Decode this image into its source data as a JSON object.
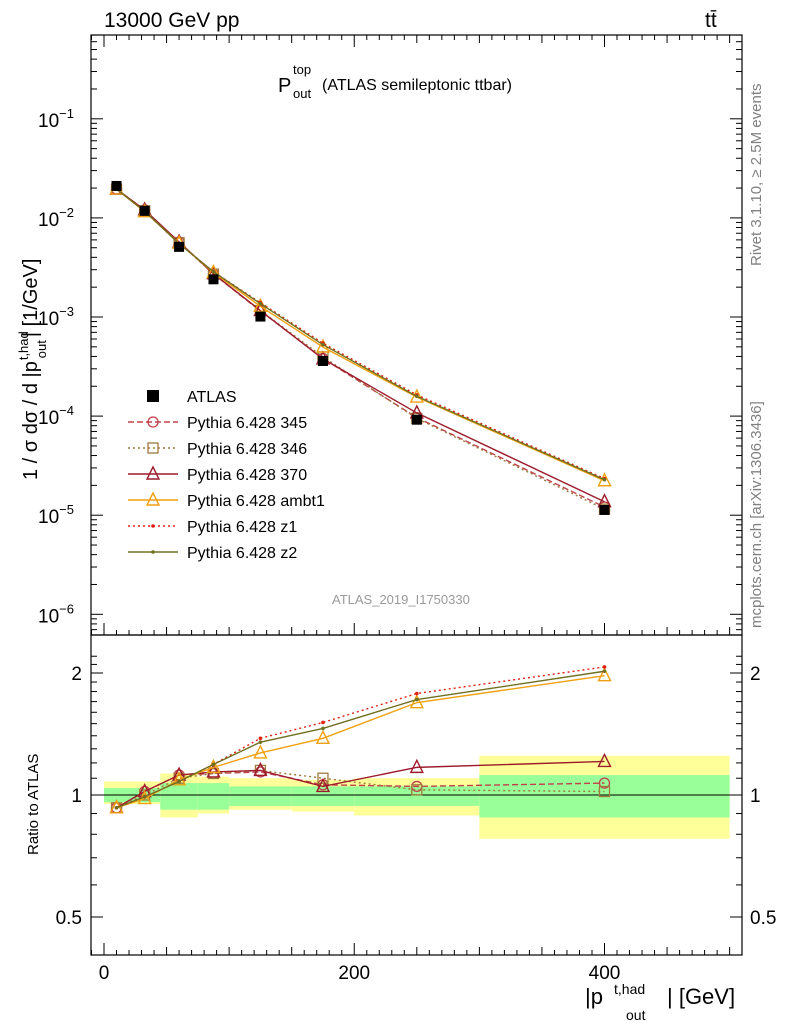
{
  "header": {
    "energy_label": "13000 GeV pp",
    "process_label": "tt̄",
    "plot_title_main": "P",
    "plot_title_sup": "top",
    "plot_title_sub": "out",
    "plot_title_rest": "(ATLAS semileptonic ttbar)",
    "analysis_id": "ATLAS_2019_I1750330",
    "side_rivet": "Rivet 3.1.10, ≥ 2.5M events",
    "side_mcplots": "mcplots.cern.ch [arXiv:1306.3436]"
  },
  "axes": {
    "ylabel_main": "1 / σ dσ / d |p",
    "ylabel_main_sup": "t,had",
    "ylabel_main_sub": "out",
    "ylabel_main_rest": "| [1/GeV]",
    "ylabel_ratio": "Ratio to ATLAS",
    "xlabel_main": "|p",
    "xlabel_sup": "t,had",
    "xlabel_sub": "out",
    "xlabel_rest": "| [GeV]",
    "xticks": [
      "0",
      "200",
      "400"
    ],
    "ratio_ticks_left": [
      "2",
      "1",
      "0.5"
    ],
    "ratio_ticks_right": [
      "2",
      "1",
      "0.5"
    ],
    "main_ytick_labels": [
      {
        "base": "10",
        "exp": "−1"
      },
      {
        "base": "10",
        "exp": "−2"
      },
      {
        "base": "10",
        "exp": "−3"
      },
      {
        "base": "10",
        "exp": "−4"
      },
      {
        "base": "10",
        "exp": "−5"
      },
      {
        "base": "10",
        "exp": "−6"
      }
    ]
  },
  "legend": [
    {
      "label": "ATLAS",
      "color": "#000000",
      "style": "data"
    },
    {
      "label": "Pythia 6.428 345",
      "color": "#c0404a",
      "style": "dashed-circle"
    },
    {
      "label": "Pythia 6.428 346",
      "color": "#9f7a3c",
      "style": "dotted-square"
    },
    {
      "label": "Pythia 6.428 370",
      "color": "#9c1c2c",
      "style": "solid-triangle"
    },
    {
      "label": "Pythia 6.428 ambt1",
      "color": "#f0a010",
      "style": "solid-triangle"
    },
    {
      "label": "Pythia 6.428 z1",
      "color": "#e02010",
      "style": "dotted-dot"
    },
    {
      "label": "Pythia 6.428 z2",
      "color": "#707020",
      "style": "solid-dot"
    }
  ],
  "chart_data": {
    "type": "line",
    "x": [
      10,
      32.5,
      60,
      87.5,
      125,
      175,
      250,
      400
    ],
    "xlim": [
      -10,
      510
    ],
    "ylim_main": [
      5e-07,
      1
    ],
    "yscale_main": "log",
    "ylim_ratio": [
      0.4,
      2.3
    ],
    "yscale_ratio": "log",
    "data": {
      "name": "ATLAS",
      "values": [
        0.021,
        0.0118,
        0.0051,
        0.0024,
        0.00101,
        0.00036,
        9.2e-05,
        1.13e-05
      ]
    },
    "bins": [
      [
        0,
        20
      ],
      [
        20,
        45
      ],
      [
        45,
        75
      ],
      [
        75,
        100
      ],
      [
        100,
        150
      ],
      [
        150,
        200
      ],
      [
        200,
        300
      ],
      [
        300,
        500
      ]
    ],
    "stat_band": [
      [
        0.96,
        1.04
      ],
      [
        0.96,
        1.04
      ],
      [
        0.92,
        1.07
      ],
      [
        0.92,
        1.07
      ],
      [
        0.94,
        1.05
      ],
      [
        0.94,
        1.05
      ],
      [
        0.94,
        1.05
      ],
      [
        0.88,
        1.12
      ]
    ],
    "total_band": [
      [
        0.95,
        1.08
      ],
      [
        0.95,
        1.08
      ],
      [
        0.88,
        1.13
      ],
      [
        0.9,
        1.11
      ],
      [
        0.92,
        1.1
      ],
      [
        0.91,
        1.09
      ],
      [
        0.89,
        1.1
      ],
      [
        0.78,
        1.25
      ]
    ],
    "series": [
      {
        "name": "Pythia 6.428 345",
        "ratio": [
          0.93,
          1.02,
          1.12,
          1.13,
          1.14,
          1.06,
          1.05,
          1.07
        ]
      },
      {
        "name": "Pythia 6.428 346",
        "ratio": [
          0.93,
          1.0,
          1.1,
          1.13,
          1.15,
          1.1,
          1.03,
          1.02
        ]
      },
      {
        "name": "Pythia 6.428 370",
        "ratio": [
          0.93,
          1.02,
          1.12,
          1.14,
          1.15,
          1.05,
          1.17,
          1.21
        ]
      },
      {
        "name": "Pythia 6.428 ambt1",
        "ratio": [
          0.93,
          0.98,
          1.09,
          1.17,
          1.27,
          1.38,
          1.69,
          1.97
        ]
      },
      {
        "name": "Pythia 6.428 z1",
        "ratio": [
          0.93,
          0.99,
          1.08,
          1.19,
          1.38,
          1.51,
          1.78,
          2.07
        ]
      },
      {
        "name": "Pythia 6.428 z2",
        "ratio": [
          0.93,
          0.99,
          1.08,
          1.19,
          1.35,
          1.46,
          1.72,
          2.02
        ]
      }
    ]
  }
}
